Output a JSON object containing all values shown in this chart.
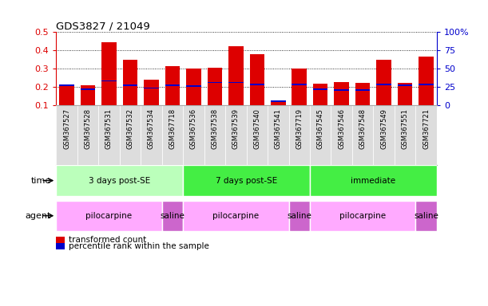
{
  "title": "GDS3827 / 21049",
  "samples": [
    "GSM367527",
    "GSM367528",
    "GSM367531",
    "GSM367532",
    "GSM367534",
    "GSM367718",
    "GSM367536",
    "GSM367538",
    "GSM367539",
    "GSM367540",
    "GSM367541",
    "GSM367719",
    "GSM367545",
    "GSM367546",
    "GSM367548",
    "GSM367549",
    "GSM367551",
    "GSM367721"
  ],
  "transformed_count": [
    0.21,
    0.21,
    0.445,
    0.35,
    0.24,
    0.315,
    0.3,
    0.305,
    0.425,
    0.38,
    0.12,
    0.3,
    0.22,
    0.23,
    0.225,
    0.35,
    0.225,
    0.365
  ],
  "percentile_rank": [
    0.21,
    0.19,
    0.235,
    0.21,
    0.195,
    0.21,
    0.205,
    0.225,
    0.225,
    0.215,
    0.125,
    0.215,
    0.19,
    0.185,
    0.185,
    0.215,
    0.21,
    0.215
  ],
  "bar_bottom": 0.1,
  "ylim_left": [
    0.1,
    0.5
  ],
  "ylim_right": [
    0,
    100
  ],
  "yticks_left": [
    0.1,
    0.2,
    0.3,
    0.4,
    0.5
  ],
  "yticks_right": [
    0,
    25,
    50,
    75,
    100
  ],
  "ytick_labels_right": [
    "0",
    "25",
    "50",
    "75",
    "100%"
  ],
  "bar_color": "#dd0000",
  "percentile_color": "#0000cc",
  "bg_color": "#ffffff",
  "plot_bg": "#ffffff",
  "time_groups": [
    {
      "label": "3 days post-SE",
      "start": 0,
      "end": 5,
      "color": "#bbffbb"
    },
    {
      "label": "7 days post-SE",
      "start": 6,
      "end": 11,
      "color": "#44ee44"
    },
    {
      "label": "immediate",
      "start": 12,
      "end": 17,
      "color": "#44ee44"
    }
  ],
  "agent_groups": [
    {
      "label": "pilocarpine",
      "start": 0,
      "end": 4,
      "color": "#ffaaff"
    },
    {
      "label": "saline",
      "start": 5,
      "end": 5,
      "color": "#cc66cc"
    },
    {
      "label": "pilocarpine",
      "start": 6,
      "end": 10,
      "color": "#ffaaff"
    },
    {
      "label": "saline",
      "start": 11,
      "end": 11,
      "color": "#cc66cc"
    },
    {
      "label": "pilocarpine",
      "start": 12,
      "end": 16,
      "color": "#ffaaff"
    },
    {
      "label": "saline",
      "start": 17,
      "end": 17,
      "color": "#cc66cc"
    }
  ],
  "legend_items": [
    {
      "label": "transformed count",
      "color": "#dd0000"
    },
    {
      "label": "percentile rank within the sample",
      "color": "#0000cc"
    }
  ],
  "tick_label_color_left": "#dd0000",
  "tick_label_color_right": "#0000cc",
  "bar_width": 0.7,
  "percentile_bar_height": 0.007
}
